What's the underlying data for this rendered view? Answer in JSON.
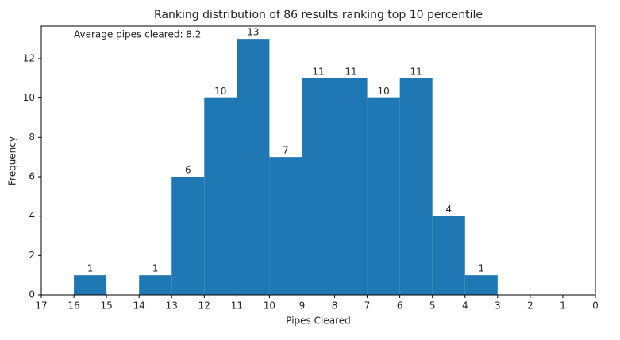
{
  "chart_data": {
    "type": "histogram",
    "title": "Ranking distribution of 86 results ranking top 10 percentile",
    "x_label": "Pipes Cleared",
    "y_label": "Frequency",
    "annotation": "Average pipes cleared: 8.2",
    "bins": [
      16,
      15,
      14,
      13,
      12,
      11,
      10,
      9,
      8,
      7,
      6,
      5,
      4,
      3
    ],
    "counts": [
      1,
      0,
      1,
      6,
      10,
      13,
      7,
      11,
      11,
      10,
      11,
      4,
      1
    ],
    "color": "#1f77b4",
    "xlim": [
      17,
      0
    ],
    "xticks": [
      17,
      16,
      15,
      14,
      13,
      12,
      11,
      10,
      9,
      8,
      7,
      6,
      5,
      4,
      3,
      2,
      1,
      0
    ],
    "ylim": [
      0,
      13.65
    ],
    "yticks": [
      0,
      2,
      4,
      6,
      8,
      10,
      12
    ]
  }
}
